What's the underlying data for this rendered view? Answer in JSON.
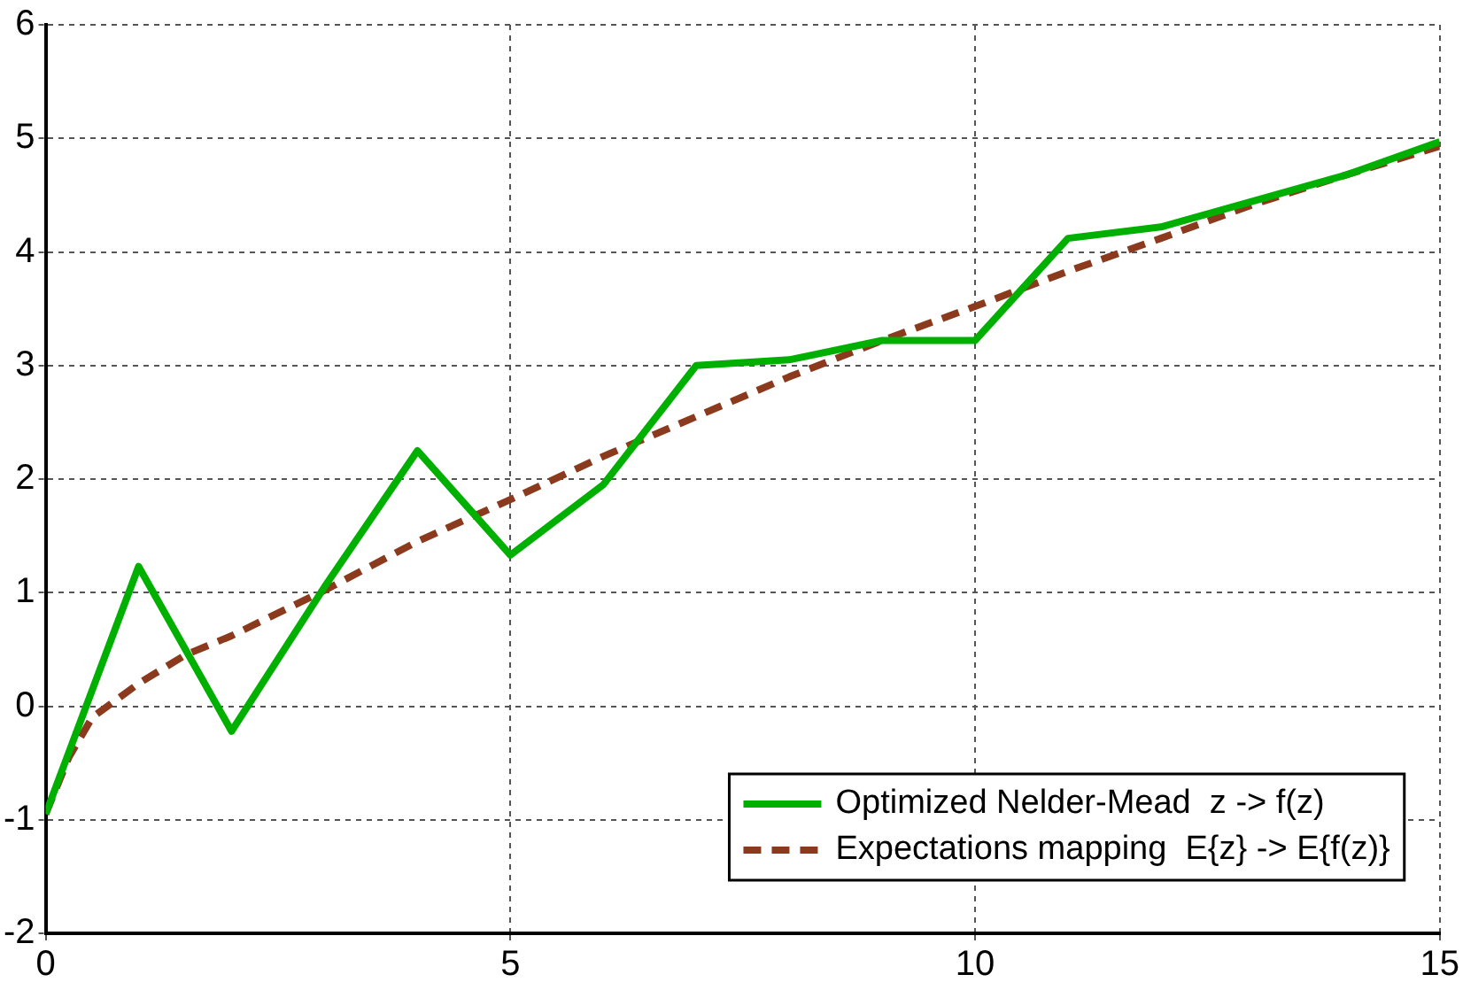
{
  "chart_data": {
    "type": "line",
    "xlim": [
      0,
      15
    ],
    "xticks": [
      0,
      5,
      10,
      15
    ],
    "ylim": [
      -2,
      6
    ],
    "yticks": [
      -2,
      -1,
      0,
      1,
      2,
      3,
      4,
      5,
      6
    ],
    "grid": true,
    "legend": "bottom right",
    "marker": "none",
    "series": [
      {
        "name": "Optimized Nelder-Mead  z -> f(z)",
        "color": "#00b000",
        "line_style": "solid",
        "x": [
          0,
          1,
          2,
          3,
          4,
          5,
          6,
          7,
          8,
          9,
          10,
          11,
          12,
          13,
          14,
          15
        ],
        "values": [
          -0.95,
          1.23,
          -0.22,
          1.05,
          2.25,
          1.33,
          1.95,
          3.0,
          3.05,
          3.22,
          3.22,
          4.12,
          4.22,
          4.45,
          4.68,
          4.97
        ]
      },
      {
        "name": "Expectations mapping  E{z} -> E{f(z)}",
        "color": "#8b3a1e",
        "line_style": "dashed",
        "x": [
          0,
          0.25,
          0.5,
          1,
          1.5,
          2,
          3,
          4,
          5,
          6,
          7,
          8,
          9,
          10,
          11,
          12,
          13,
          14,
          15
        ],
        "values": [
          -0.95,
          -0.45,
          -0.1,
          0.2,
          0.45,
          0.62,
          1.02,
          1.45,
          1.82,
          2.2,
          2.55,
          2.9,
          3.22,
          3.52,
          3.83,
          4.12,
          4.42,
          4.68,
          4.93
        ]
      }
    ]
  }
}
